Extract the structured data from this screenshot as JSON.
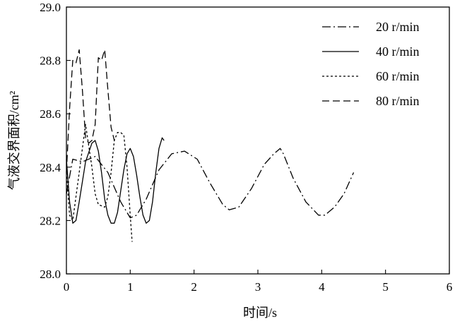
{
  "chart_data": {
    "type": "line",
    "title": "",
    "xlabel": "时间/s",
    "ylabel": "气液交界面积/cm²",
    "xlim": [
      0,
      6
    ],
    "ylim": [
      28.0,
      29.0
    ],
    "xticks": [
      "0",
      "1",
      "2",
      "3",
      "4",
      "5",
      "6"
    ],
    "yticks": [
      "28.0",
      "28.2",
      "28.4",
      "28.6",
      "28.8",
      "29.0"
    ],
    "grid": false,
    "legend_position": "top-right",
    "series": [
      {
        "name": "20 r/min",
        "dash": "12,4,2,4",
        "x": [
          0.0,
          0.1,
          0.25,
          0.45,
          0.65,
          0.85,
          1.0,
          1.1,
          1.25,
          1.45,
          1.65,
          1.85,
          2.05,
          2.25,
          2.45,
          2.55,
          2.7,
          2.9,
          3.1,
          3.25,
          3.3,
          3.35,
          3.4,
          3.55,
          3.75,
          3.95,
          4.05,
          4.2,
          4.35,
          4.5
        ],
        "y": [
          28.3,
          28.43,
          28.42,
          28.44,
          28.38,
          28.27,
          28.21,
          28.22,
          28.28,
          28.39,
          28.45,
          28.46,
          28.43,
          28.34,
          28.26,
          28.24,
          28.25,
          28.32,
          28.41,
          28.45,
          28.46,
          28.47,
          28.45,
          28.36,
          28.27,
          28.22,
          28.22,
          28.25,
          28.3,
          28.38
        ]
      },
      {
        "name": "40 r/min",
        "dash": "",
        "x": [
          0.0,
          0.05,
          0.1,
          0.15,
          0.2,
          0.3,
          0.4,
          0.45,
          0.5,
          0.55,
          0.6,
          0.65,
          0.7,
          0.75,
          0.8,
          0.85,
          0.9,
          0.95,
          1.0,
          1.05,
          1.1,
          1.15,
          1.2,
          1.25,
          1.3,
          1.35,
          1.4,
          1.45,
          1.5,
          1.53
        ],
        "y": [
          28.43,
          28.27,
          28.19,
          28.2,
          28.27,
          28.42,
          28.49,
          28.5,
          28.46,
          28.38,
          28.28,
          28.22,
          28.19,
          28.19,
          28.23,
          28.31,
          28.39,
          28.45,
          28.47,
          28.44,
          28.37,
          28.29,
          28.22,
          28.19,
          28.2,
          28.27,
          28.38,
          28.47,
          28.51,
          28.5
        ]
      },
      {
        "name": "60 r/min",
        "dash": "3,3",
        "x": [
          0.0,
          0.05,
          0.1,
          0.2,
          0.3,
          0.4,
          0.45,
          0.5,
          0.6,
          0.65,
          0.7,
          0.75,
          0.8,
          0.85,
          0.9,
          0.95,
          1.0,
          1.03
        ],
        "y": [
          28.38,
          28.22,
          28.2,
          28.38,
          28.56,
          28.4,
          28.3,
          28.26,
          28.25,
          28.29,
          28.38,
          28.5,
          28.53,
          28.53,
          28.52,
          28.4,
          28.22,
          28.12
        ]
      },
      {
        "name": "80 r/min",
        "dash": "10,5",
        "x": [
          0.0,
          0.05,
          0.1,
          0.15,
          0.2,
          0.25,
          0.3,
          0.35,
          0.4,
          0.45,
          0.5,
          0.55,
          0.6,
          0.65,
          0.7,
          0.75
        ],
        "y": [
          28.38,
          28.62,
          28.8,
          28.79,
          28.84,
          28.69,
          28.51,
          28.49,
          28.5,
          28.56,
          28.81,
          28.8,
          28.84,
          28.69,
          28.55,
          28.5
        ]
      }
    ]
  }
}
